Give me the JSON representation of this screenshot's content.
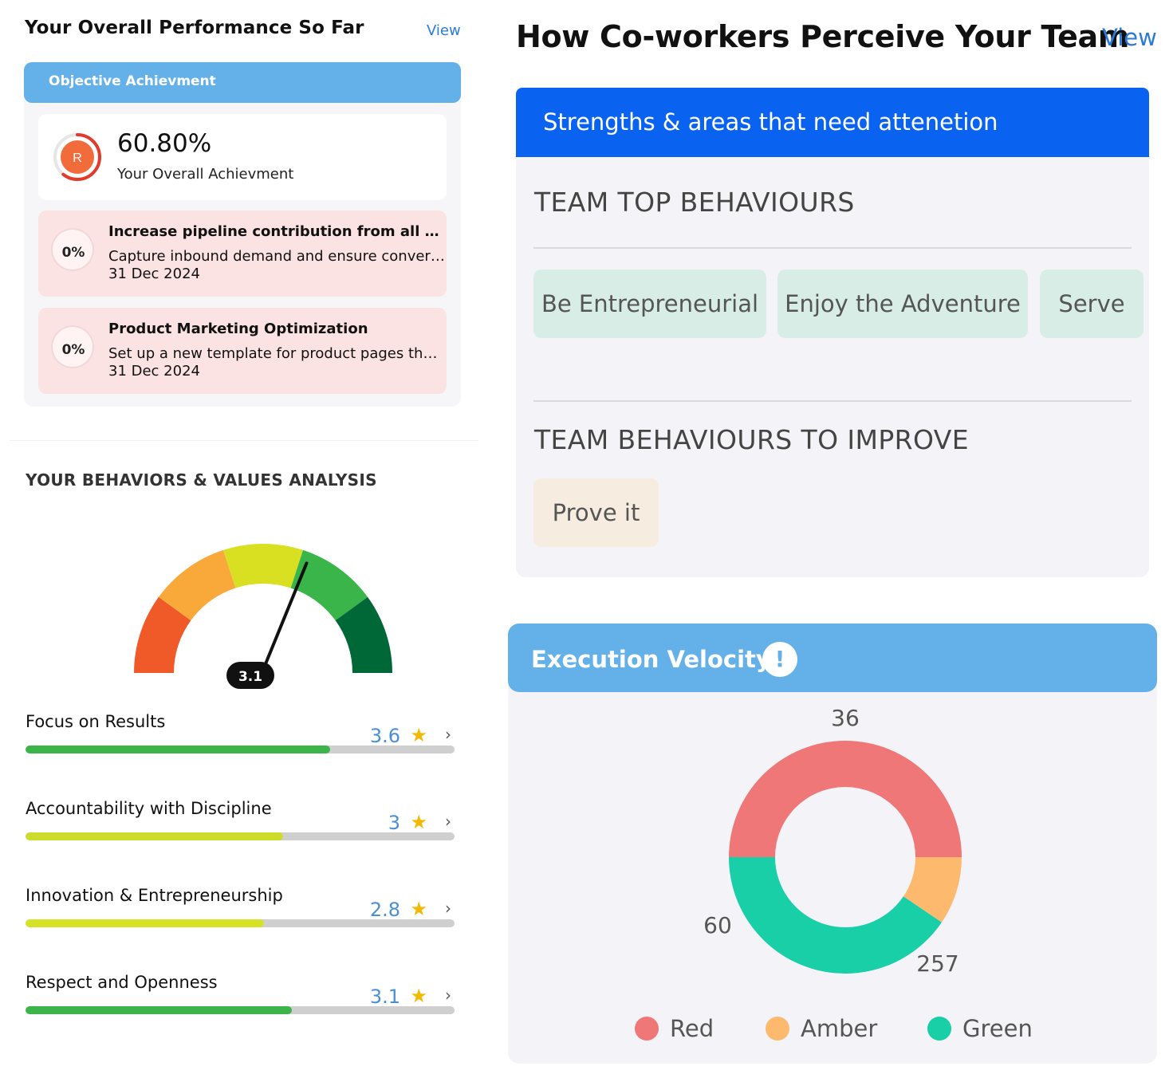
{
  "performance": {
    "title": "Your Overall Performance So Far",
    "view_label": "View",
    "section_header": "Objective Achievment",
    "achievement": {
      "value": "60.80%",
      "label": "Your Overall Achievment",
      "rag_letter": "R",
      "fraction": 0.608
    },
    "objectives": [
      {
        "percent": "0%",
        "title": "Increase pipeline contribution from all Inbou...",
        "description": "Capture inbound demand and ensure conversi...",
        "date": "31 Dec 2024"
      },
      {
        "percent": "0%",
        "title": "Product Marketing Optimization",
        "description": "Set up a new template for product pages that ...",
        "date": "31 Dec 2024"
      }
    ]
  },
  "behaviors": {
    "title": "YOUR BEHAVIORS & VALUES ANALYSIS",
    "gauge_value": "3.1",
    "gauge_value_num": 3.1,
    "gauge_max": 5,
    "items": [
      {
        "name": "Focus on Results",
        "score": "3.6",
        "fraction": 0.71,
        "color": "#3bb54a"
      },
      {
        "name": "Accountability with Discipline",
        "score": "3",
        "fraction": 0.6,
        "color": "#cddc2b"
      },
      {
        "name": "Innovation & Entrepreneurship",
        "score": "2.8",
        "fraction": 0.555,
        "color": "#d6e226"
      },
      {
        "name": "Respect and Openness",
        "score": "3.1",
        "fraction": 0.62,
        "color": "#3bb54a"
      }
    ]
  },
  "coworkers": {
    "title": "How Co-workers Perceive Your Team",
    "view_label": "View",
    "header": "Strengths & areas that need attenetion",
    "top_title": "TEAM TOP BEHAVIOURS",
    "top_behaviours": [
      "Be Entrepreneurial",
      "Enjoy the Adventure",
      "Serve"
    ],
    "improve_title": "TEAM BEHAVIOURS TO IMPROVE",
    "improve_behaviours": [
      "Prove it"
    ]
  },
  "execution": {
    "title": "Execution Velocity",
    "info_icon": "info-icon",
    "info_glyph": "!"
  },
  "chart_data": {
    "type": "pie",
    "title": "Execution Velocity",
    "categories": [
      "Red",
      "Amber",
      "Green"
    ],
    "values": [
      36,
      60,
      257
    ],
    "labels": [
      "36",
      "60",
      "257"
    ],
    "colors": [
      "#ef7777",
      "#fdb96e",
      "#18cfa7"
    ],
    "legend": "bottom"
  }
}
